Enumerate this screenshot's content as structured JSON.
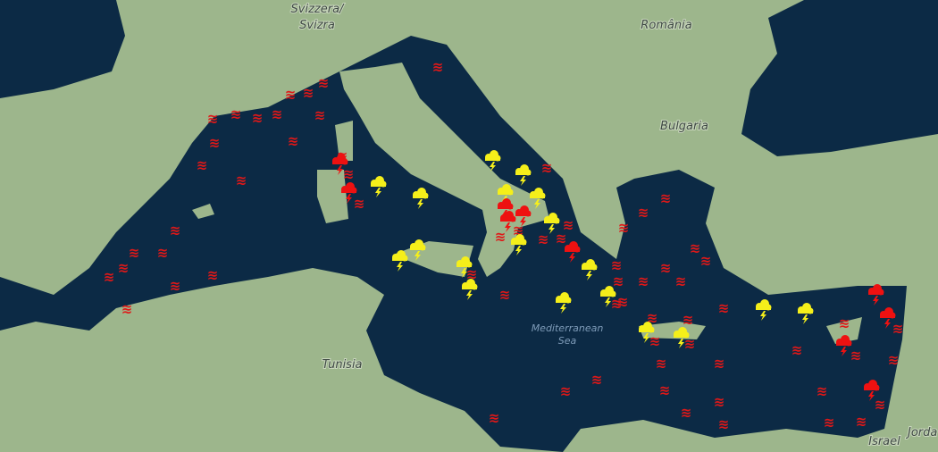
{
  "labels": {
    "svizzera": "Svizzera/",
    "svizra": "Svizra",
    "romania": "România",
    "bulgaria": "Bulgaria",
    "sea_name": "Mediterranean",
    "sea_word": "Sea",
    "tunisia": "Tunisia",
    "israel": "Israel",
    "jordan": "Jorda"
  }
}
